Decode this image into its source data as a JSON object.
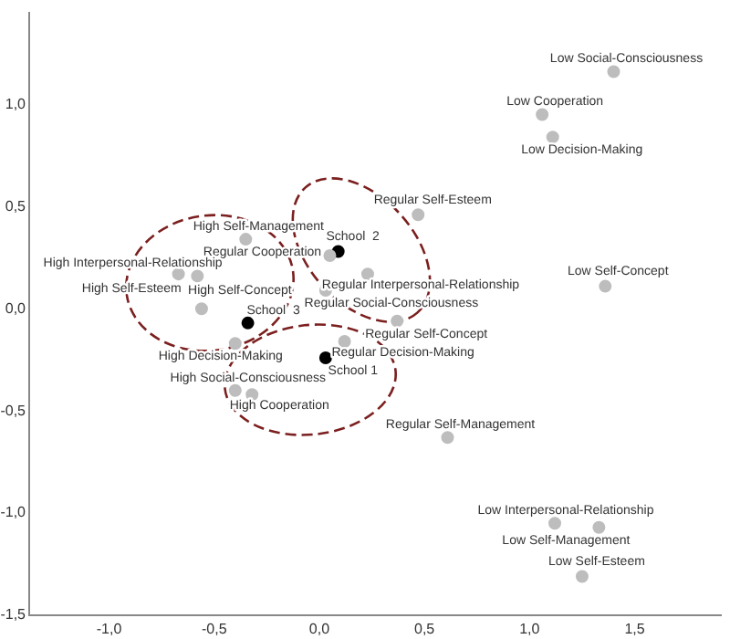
{
  "chart_data": {
    "type": "scatter",
    "xlim": [
      -1.38,
      1.91
    ],
    "ylim": [
      -1.5,
      1.45
    ],
    "xticks": [
      {
        "value": -1,
        "label": "-1,0"
      },
      {
        "value": -0.5,
        "label": "-0,5"
      },
      {
        "value": 0,
        "label": "0,0"
      },
      {
        "value": 0.5,
        "label": "0,5"
      },
      {
        "value": 1,
        "label": "1,0"
      },
      {
        "value": 1.5,
        "label": "1,5"
      }
    ],
    "yticks": [
      {
        "value": -1.5,
        "label": "-1,5"
      },
      {
        "value": -1,
        "label": "-1,0"
      },
      {
        "value": -0.5,
        "label": "-0,5"
      },
      {
        "value": 0,
        "label": "0,0"
      },
      {
        "value": 0.5,
        "label": "0,5"
      },
      {
        "value": 1,
        "label": "1,0"
      }
    ],
    "grid": false,
    "legend": false,
    "marker": "circle",
    "series": [
      {
        "color": "#bdbdbd",
        "x": [
          1.4,
          1.06,
          1.11,
          0.47,
          -0.35,
          0.05,
          -0.67,
          -0.58,
          0.23,
          -0.56,
          0.03,
          1.36,
          0.37,
          -0.4,
          0.12,
          -0.4,
          -0.32,
          0.61,
          1.12,
          1.33,
          1.25
        ],
        "values": [
          1.16,
          0.95,
          0.84,
          0.46,
          0.34,
          0.26,
          0.17,
          0.16,
          0.17,
          0.0,
          0.09,
          0.11,
          -0.06,
          -0.17,
          -0.16,
          -0.4,
          -0.42,
          -0.63,
          -1.05,
          -1.07,
          -1.31
        ],
        "value_labels": [
          "Low Social-Consciousness",
          "Low Cooperation",
          "Low Decision-Making",
          "Regular Self-Esteem",
          "High Self-Management",
          "Regular Cooperation",
          "High Interpersonal-Relationship",
          "High Self-Esteem",
          "Regular Interpersonal-Relationship",
          "High Self-Concept",
          "Regular Social-Consciousness",
          "Low Self-Concept",
          "Regular Self-Concept",
          "High Decision-Making",
          "Regular Decision-Making",
          "High Social-Consciousness",
          "High Cooperation",
          "Regular Self-Management",
          "Low Interpersonal-Relationship",
          "Low Self-Management",
          "Low Self-Esteem"
        ]
      },
      {
        "color": "#000000",
        "x": [
          0.09,
          -0.34,
          0.03
        ],
        "values": [
          0.28,
          -0.07,
          -0.24
        ],
        "value_labels": [
          "School  2",
          "School  3",
          "School 1"
        ]
      }
    ]
  }
}
